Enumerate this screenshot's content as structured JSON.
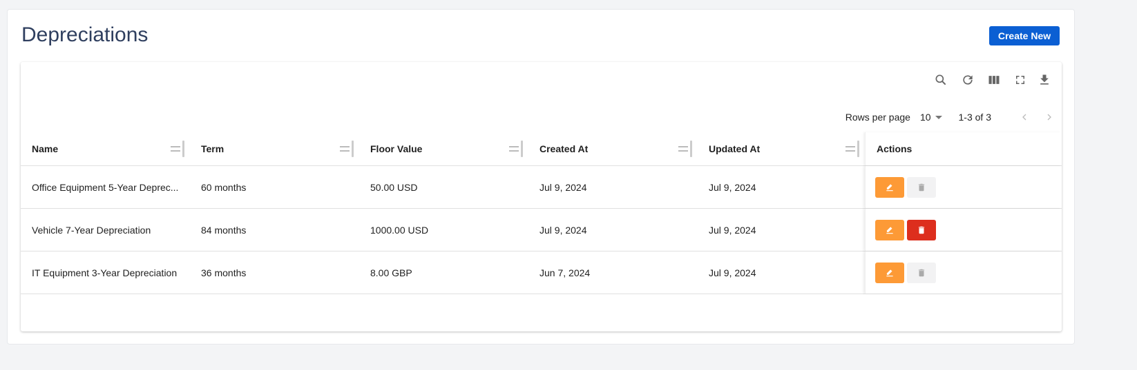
{
  "page": {
    "title": "Depreciations",
    "create_label": "Create New"
  },
  "toolbar": {
    "icons": [
      "search-icon",
      "refresh-icon",
      "columns-icon",
      "fullscreen-icon",
      "download-icon"
    ]
  },
  "pagination": {
    "rows_per_page_label": "Rows per page",
    "rows_per_page": "10",
    "range": "1-3 of 3"
  },
  "table": {
    "columns": [
      "Name",
      "Term",
      "Floor Value",
      "Created At",
      "Updated At",
      "Actions"
    ],
    "rows": [
      {
        "name": "Office Equipment 5-Year Deprec...",
        "term": "60 months",
        "floor": "50.00 USD",
        "created": "Jul 9, 2024",
        "updated": "Jul 9, 2024",
        "delete_enabled": false
      },
      {
        "name": "Vehicle 7-Year Depreciation",
        "term": "84 months",
        "floor": "1000.00 USD",
        "created": "Jul 9, 2024",
        "updated": "Jul 9, 2024",
        "delete_enabled": true
      },
      {
        "name": "IT Equipment 3-Year Depreciation",
        "term": "36 months",
        "floor": "8.00 GBP",
        "created": "Jun 7, 2024",
        "updated": "Jul 9, 2024",
        "delete_enabled": false
      }
    ]
  },
  "colors": {
    "primary": "#0b5fd3",
    "edit": "#fd9a36",
    "delete": "#dd2e1d",
    "title": "#2f3f5f"
  }
}
